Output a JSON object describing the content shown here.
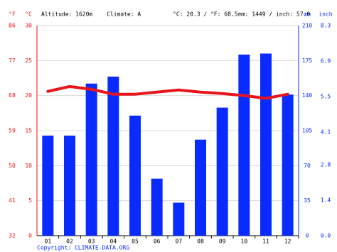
{
  "chart_data": {
    "type": "climate",
    "header": {
      "altitude": "Altitude: 1620m",
      "climate": "Climate: A",
      "temp_avg": "°C: 20.3 / °F: 68.5",
      "precip_total": "mm: 1449 / inch: 57.0"
    },
    "axis_labels": {
      "f": "°F",
      "c": "°C",
      "mm": "mm",
      "inch": "inch"
    },
    "copyright": "Copyright: CLIMATE-DATA.ORG",
    "categories": [
      "01",
      "02",
      "03",
      "04",
      "05",
      "06",
      "07",
      "08",
      "09",
      "10",
      "11",
      "12"
    ],
    "ylim": [
      0,
      30
    ],
    "yticks": [
      0,
      5,
      10,
      15,
      20,
      25,
      30
    ],
    "ylim_f": [
      32,
      86
    ],
    "yticks_f": [
      32,
      41,
      50,
      59,
      68,
      77,
      86
    ],
    "y2lim": [
      0,
      210
    ],
    "y2ticks": [
      0,
      35,
      70,
      105,
      140,
      175,
      210
    ],
    "y2lim_inch": [
      0,
      8.3
    ],
    "y2ticks_inch": [
      {
        "value": 0,
        "label": "0.0"
      },
      1.4,
      2.8,
      4.1,
      5.5,
      6.9,
      8.3
    ],
    "grid": true,
    "series": [
      {
        "name": "Precipitation",
        "type": "bar",
        "axis": "y2",
        "color": "#0a2bff",
        "values": [
          100,
          100,
          152,
          159,
          120,
          57,
          33,
          96,
          128,
          181,
          182,
          141
        ]
      },
      {
        "name": "Temperature",
        "type": "line",
        "color": "#e8141b",
        "values": [
          20.6,
          21.3,
          20.9,
          20.2,
          20.2,
          20.5,
          20.8,
          20.5,
          20.3,
          20.0,
          19.6,
          20.2
        ]
      }
    ]
  }
}
